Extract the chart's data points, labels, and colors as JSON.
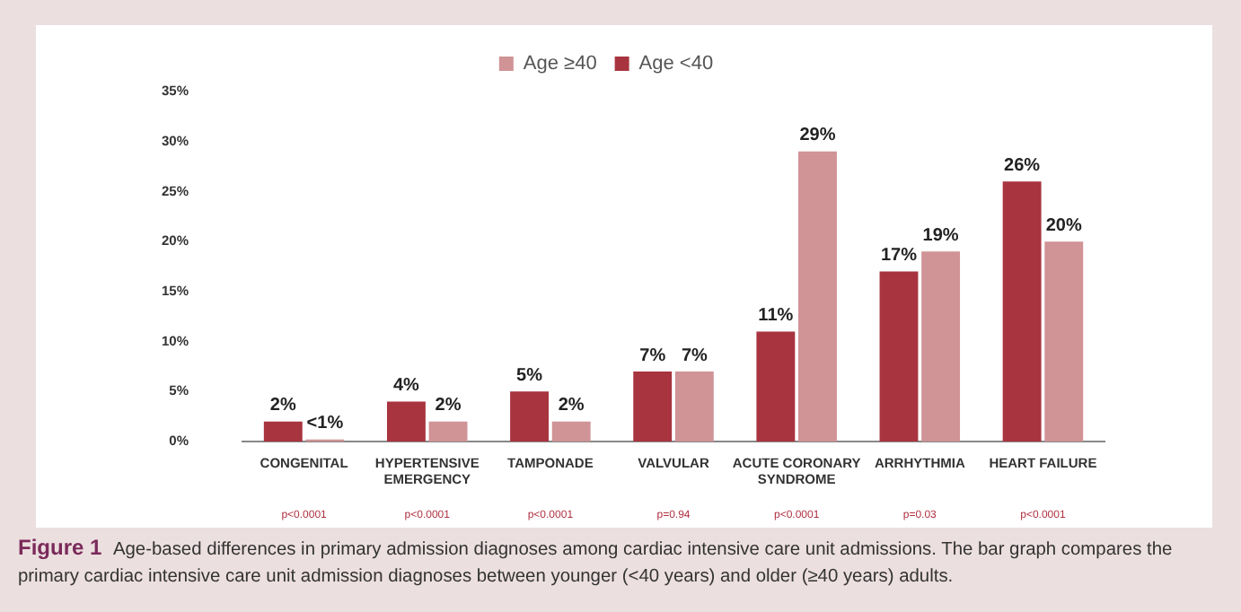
{
  "chart_data": {
    "type": "bar",
    "categories": [
      "CONGENITAL",
      "HYPERTENSIVE EMERGENCY",
      "TAMPONADE",
      "VALVULAR",
      "ACUTE CORONARY SYNDROME",
      "ARRHYTHMIA",
      "HEART FAILURE"
    ],
    "series": [
      {
        "name": "Age <40",
        "color": "#a8343f",
        "values": [
          2,
          4,
          5,
          7,
          11,
          17,
          26
        ],
        "value_labels": [
          "2%",
          "4%",
          "5%",
          "7%",
          "11%",
          "17%",
          "26%"
        ]
      },
      {
        "name": "Age ≥40",
        "color": "#d09396",
        "values": [
          0.2,
          2,
          2,
          7,
          29,
          19,
          20
        ],
        "value_labels": [
          "<1%",
          "2%",
          "2%",
          "7%",
          "29%",
          "19%",
          "20%"
        ]
      }
    ],
    "ylim": [
      0,
      35
    ],
    "yticks": [
      {
        "value": 0,
        "label": "0%"
      },
      {
        "value": 5,
        "label": "5%"
      },
      {
        "value": 10,
        "label": "10%"
      },
      {
        "value": 15,
        "label": "15%"
      },
      {
        "value": 20,
        "label": "20%"
      },
      {
        "value": 25,
        "label": "25%"
      },
      {
        "value": 30,
        "label": "30%"
      },
      {
        "value": 35,
        "label": "35%"
      }
    ],
    "grid": false,
    "legend": "top",
    "annotations": [
      "p<0.0001",
      "p<0.0001",
      "p<0.0001",
      "p=0.94",
      "p<0.0001",
      "p=0.03",
      "p<0.0001",
      "Figure 1",
      "Age-based differences in primary admission diagnoses among cardiac intensive care unit admissions. The bar graph compares the primary cardiac intensive care unit admission diagnoses between younger (<40 years) and older (≥40 years) adults."
    ]
  }
}
